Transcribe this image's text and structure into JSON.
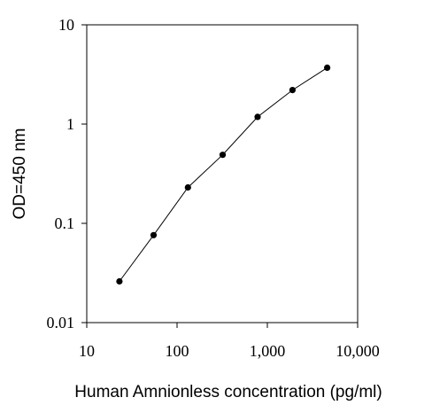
{
  "chart_data": {
    "type": "line",
    "title": "",
    "xlabel": "Human  Amnionless concentration (pg/ml)",
    "ylabel": "OD=450 nm",
    "x_scale": "log",
    "y_scale": "log",
    "xlim": [
      10,
      10000
    ],
    "ylim": [
      0.01,
      10
    ],
    "x_ticks": [
      {
        "value": 10,
        "label": "10"
      },
      {
        "value": 100,
        "label": "100"
      },
      {
        "value": 1000,
        "label": "1,000"
      },
      {
        "value": 10000,
        "label": "10,000"
      }
    ],
    "y_ticks": [
      {
        "value": 0.01,
        "label": "0.01"
      },
      {
        "value": 0.1,
        "label": "0.1"
      },
      {
        "value": 1,
        "label": "1"
      },
      {
        "value": 10,
        "label": "10"
      }
    ],
    "grid": false,
    "legend": "none",
    "series": [
      {
        "x": [
          23,
          55,
          132,
          320,
          780,
          1900,
          4600
        ],
        "y": [
          0.026,
          0.076,
          0.23,
          0.49,
          1.18,
          2.2,
          3.7
        ]
      }
    ],
    "colors": {
      "line": "#000000",
      "marker": "#000000",
      "axes": "#000000"
    }
  }
}
